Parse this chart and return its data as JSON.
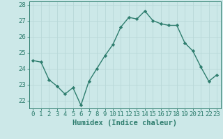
{
  "x": [
    0,
    1,
    2,
    3,
    4,
    5,
    6,
    7,
    8,
    9,
    10,
    11,
    12,
    13,
    14,
    15,
    16,
    17,
    18,
    19,
    20,
    21,
    22,
    23
  ],
  "y": [
    24.5,
    24.4,
    23.3,
    22.9,
    22.4,
    22.8,
    21.7,
    23.2,
    24.0,
    24.8,
    25.5,
    26.6,
    27.2,
    27.1,
    27.6,
    27.0,
    26.8,
    26.7,
    26.7,
    25.6,
    25.1,
    24.1,
    23.2,
    23.6
  ],
  "xlabel": "Humidex (Indice chaleur)",
  "ylim": [
    21.5,
    28.2
  ],
  "xlim": [
    -0.5,
    23.5
  ],
  "yticks": [
    22,
    23,
    24,
    25,
    26,
    27,
    28
  ],
  "xticks": [
    0,
    1,
    2,
    3,
    4,
    5,
    6,
    7,
    8,
    9,
    10,
    11,
    12,
    13,
    14,
    15,
    16,
    17,
    18,
    19,
    20,
    21,
    22,
    23
  ],
  "line_color": "#2e7d6e",
  "marker": "D",
  "marker_size": 2.2,
  "bg_color": "#cce8e8",
  "grid_color": "#b8d8d8",
  "axis_color": "#2e7d6e",
  "tick_label_color": "#2e7d6e",
  "xlabel_color": "#2e7d6e",
  "xlabel_fontsize": 7.5,
  "tick_fontsize": 6.5,
  "linewidth": 1.0
}
